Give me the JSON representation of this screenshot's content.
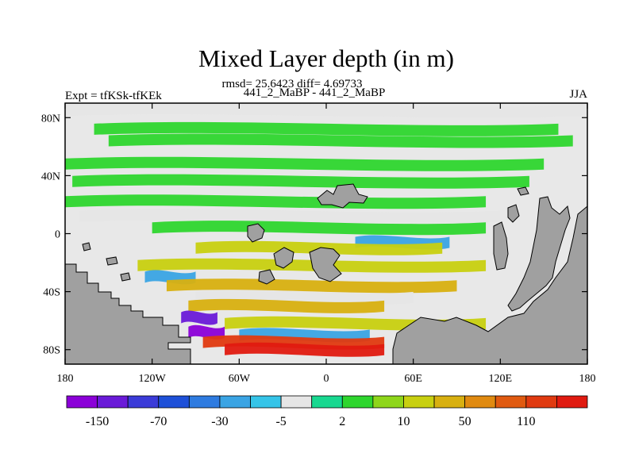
{
  "chart_data": {
    "type": "heatmap",
    "title": "Mixed Layer depth (in m)",
    "subtitle": "rmsd= 25.6423 diff= 4.69733",
    "left_label": "Expt = tfKSk-tfKEk",
    "center_label": "441_2_MaBP - 441_2_MaBP",
    "right_label": "JJA",
    "x_ticks": [
      {
        "value": -180,
        "label": "180"
      },
      {
        "value": -120,
        "label": "120W"
      },
      {
        "value": -60,
        "label": "60W"
      },
      {
        "value": 0,
        "label": "0"
      },
      {
        "value": 60,
        "label": "60E"
      },
      {
        "value": 120,
        "label": "120E"
      },
      {
        "value": 180,
        "label": "180"
      }
    ],
    "y_ticks": [
      {
        "value": 80,
        "label": "80N"
      },
      {
        "value": 40,
        "label": "40N"
      },
      {
        "value": 0,
        "label": "0"
      },
      {
        "value": -40,
        "label": "40S"
      },
      {
        "value": -80,
        "label": "80S"
      }
    ],
    "xlim": [
      -180,
      180
    ],
    "ylim": [
      -90,
      90
    ],
    "land_color": "#a0a0a0",
    "ocean_background": "#e8e8e8",
    "colorbar": {
      "colors": [
        "#8b00d8",
        "#6a1ad8",
        "#3b3bd8",
        "#1e50d8",
        "#2e7be0",
        "#3aa4e4",
        "#35c4e8",
        "#e6e6e6",
        "#18d890",
        "#2ed62e",
        "#8ed61a",
        "#c8d010",
        "#d8b010",
        "#e08a10",
        "#e05a10",
        "#e03a10",
        "#e01a10"
      ],
      "labels": [
        {
          "after_index": 0,
          "text": "-150"
        },
        {
          "after_index": 2,
          "text": "-70"
        },
        {
          "after_index": 4,
          "text": "-30"
        },
        {
          "after_index": 6,
          "text": "-5"
        },
        {
          "after_index": 8,
          "text": "2"
        },
        {
          "after_index": 10,
          "text": "10"
        },
        {
          "after_index": 12,
          "text": "50"
        },
        {
          "after_index": 14,
          "text": "110"
        }
      ]
    },
    "bands": [
      {
        "lat": 85,
        "lon": [
          -180,
          180
        ],
        "value": 0
      },
      {
        "lat": 72,
        "lon": [
          -160,
          160
        ],
        "value": 3
      },
      {
        "lat": 64,
        "lon": [
          -150,
          170
        ],
        "value": 4
      },
      {
        "lat": 48,
        "lon": [
          -180,
          150
        ],
        "value": 3
      },
      {
        "lat": 36,
        "lon": [
          -175,
          140
        ],
        "value": 4
      },
      {
        "lat": 22,
        "lon": [
          -180,
          110
        ],
        "value": 3
      },
      {
        "lat": 12,
        "lon": [
          -170,
          120
        ],
        "value": -4
      },
      {
        "lat": 4,
        "lon": [
          -120,
          110
        ],
        "value": 3
      },
      {
        "lat": -6,
        "lon": [
          20,
          85
        ],
        "value": -20
      },
      {
        "lat": -10,
        "lon": [
          -90,
          80
        ],
        "value": 12
      },
      {
        "lat": -22,
        "lon": [
          -130,
          110
        ],
        "value": 20
      },
      {
        "lat": -30,
        "lon": [
          -125,
          -90
        ],
        "value": -20
      },
      {
        "lat": -36,
        "lon": [
          -110,
          90
        ],
        "value": 35
      },
      {
        "lat": -44,
        "lon": [
          -90,
          60
        ],
        "value": -4
      },
      {
        "lat": -50,
        "lon": [
          -95,
          40
        ],
        "value": 45
      },
      {
        "lat": -58,
        "lon": [
          -100,
          -75
        ],
        "value": -120
      },
      {
        "lat": -62,
        "lon": [
          -70,
          110
        ],
        "value": 15
      },
      {
        "lat": -68,
        "lon": [
          -95,
          -70
        ],
        "value": -160
      },
      {
        "lat": -70,
        "lon": [
          -60,
          30
        ],
        "value": -20
      },
      {
        "lat": -75,
        "lon": [
          -85,
          40
        ],
        "value": 130
      },
      {
        "lat": -80,
        "lon": [
          -70,
          40
        ],
        "value": 150
      }
    ]
  }
}
